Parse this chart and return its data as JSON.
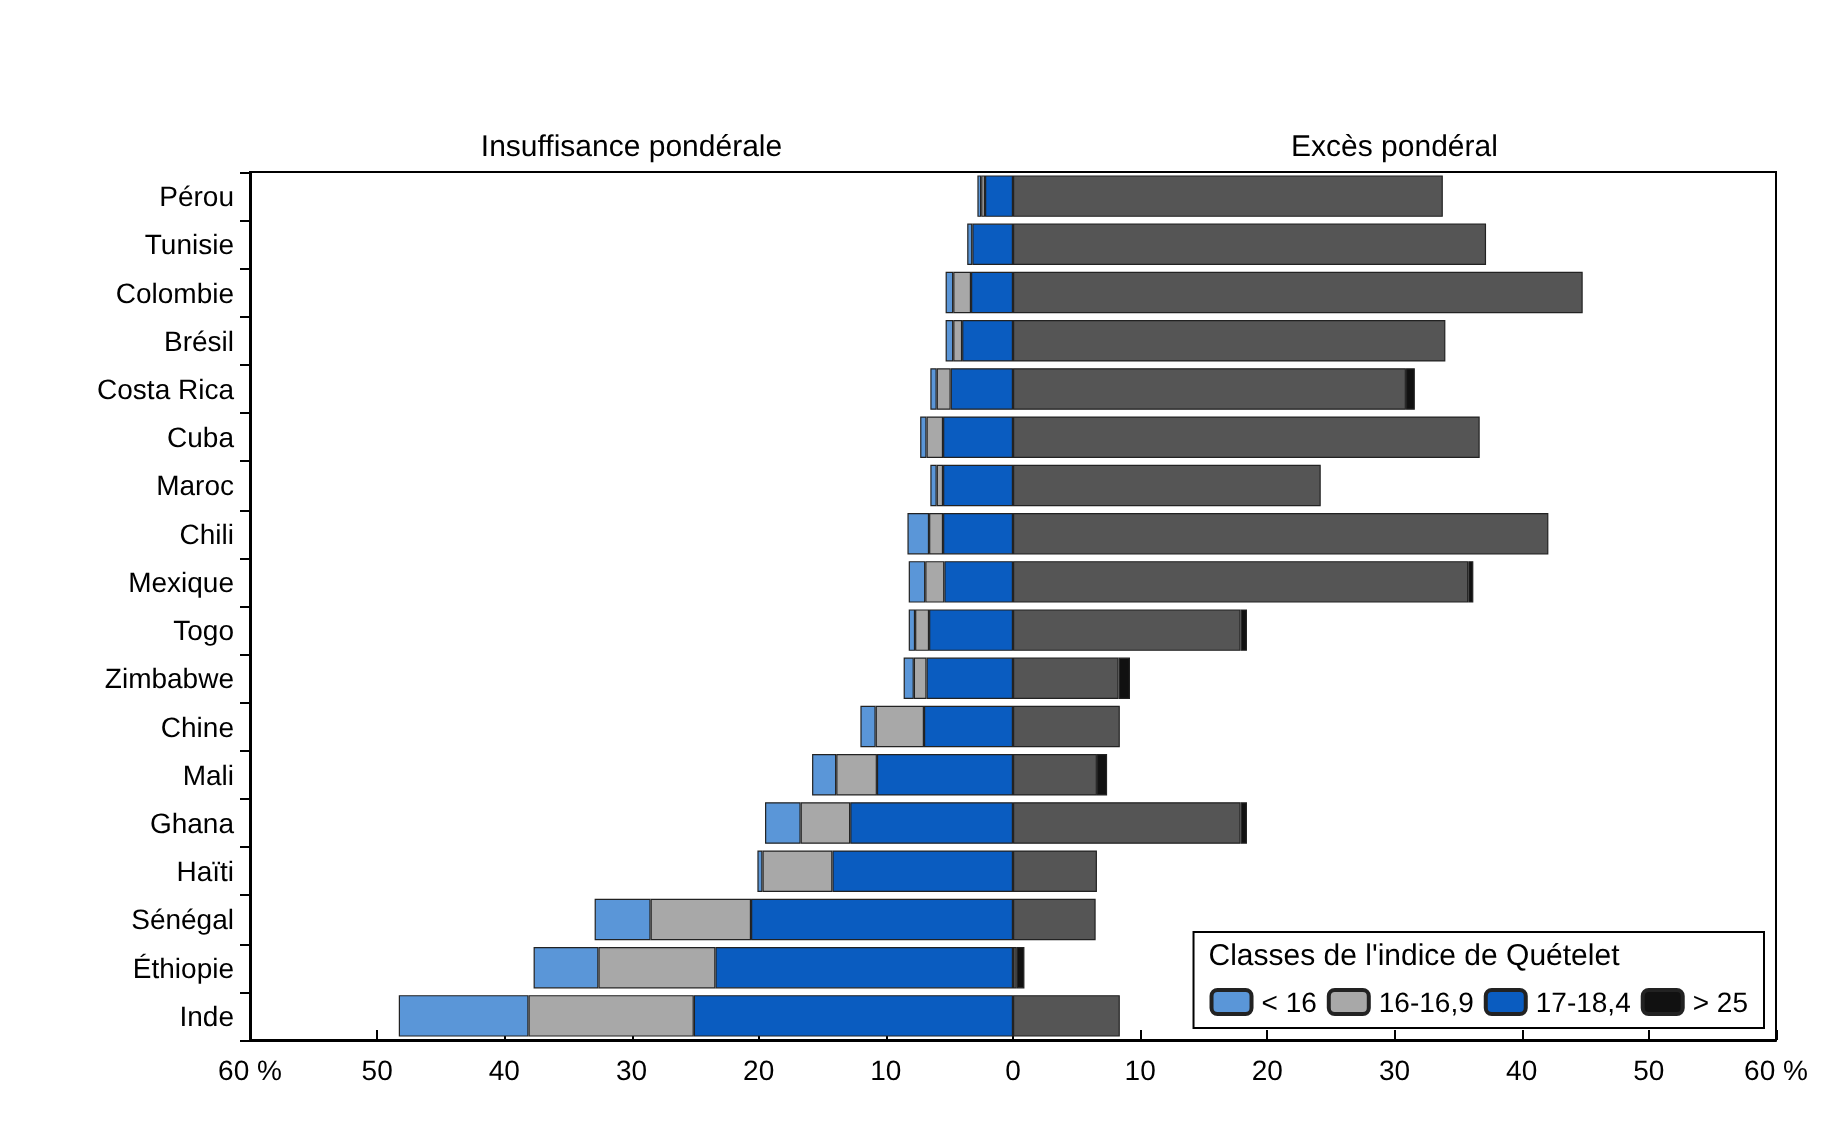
{
  "chart_data": {
    "type": "bar",
    "orientation": "horizontal",
    "stacked": true,
    "categories": [
      "Pérou",
      "Tunisie",
      "Colombie",
      "Brésil",
      "Costa Rica",
      "Cuba",
      "Maroc",
      "Chili",
      "Mexique",
      "Togo",
      "Zimbabwe",
      "Chine",
      "Mali",
      "Ghana",
      "Haïti",
      "Sénégal",
      "Éthiopie",
      "Inde"
    ],
    "annotations": [
      "Insuffisance pondérale",
      "Excès pondéral"
    ],
    "legend_title": "Classes de l'indice de Quételet",
    "series": [
      {
        "name": "17-18,4",
        "color": "#0a5cc0",
        "values": [
          -2.2,
          -3.2,
          -3.3,
          -4.0,
          -4.9,
          -5.5,
          -5.5,
          -5.5,
          -5.4,
          -6.6,
          -6.8,
          -7.0,
          -10.7,
          -12.8,
          -14.2,
          -20.6,
          -23.4,
          -25.1
        ]
      },
      {
        "name": "16-16,9",
        "color": "#a8a8a8",
        "values": [
          -0.3,
          null,
          -1.4,
          -0.7,
          -1.1,
          -1.3,
          -0.5,
          -1.1,
          -1.5,
          -1.1,
          -1.0,
          -3.8,
          -3.2,
          -3.9,
          -5.5,
          -7.9,
          -9.2,
          -13.0
        ]
      },
      {
        "name": "< 16",
        "color": "#5a96d8",
        "values": [
          -0.3,
          -0.4,
          -0.6,
          -0.6,
          -0.5,
          -0.5,
          -0.5,
          -1.7,
          -1.3,
          -0.5,
          -0.8,
          -1.2,
          -1.9,
          -2.8,
          -0.4,
          -4.4,
          -5.1,
          -10.2
        ]
      },
      {
        "color": "#555555",
        "values": [
          33.8,
          37.2,
          44.8,
          34.0,
          30.9,
          36.7,
          24.2,
          42.1,
          35.8,
          17.9,
          8.3,
          8.4,
          6.6,
          17.9,
          6.6,
          6.5,
          0.3,
          8.4
        ]
      },
      {
        "name": "> 25",
        "color": "#111111",
        "values": [
          null,
          null,
          null,
          null,
          0.7,
          null,
          null,
          null,
          0.4,
          0.5,
          0.9,
          null,
          0.8,
          0.5,
          null,
          null,
          0.6,
          null
        ]
      }
    ],
    "xlim": [
      -60,
      60
    ],
    "xticks": [
      {
        "value": -60,
        "label": "60 %"
      },
      {
        "value": -50,
        "label": "50"
      },
      {
        "value": -40,
        "label": "40"
      },
      {
        "value": -30,
        "label": "30"
      },
      {
        "value": -20,
        "label": "20"
      },
      {
        "value": -10,
        "label": "10"
      },
      0,
      10,
      20,
      30,
      40,
      50,
      {
        "value": 60,
        "label": "60 %"
      }
    ],
    "grid": false,
    "legend": "bottom right"
  }
}
